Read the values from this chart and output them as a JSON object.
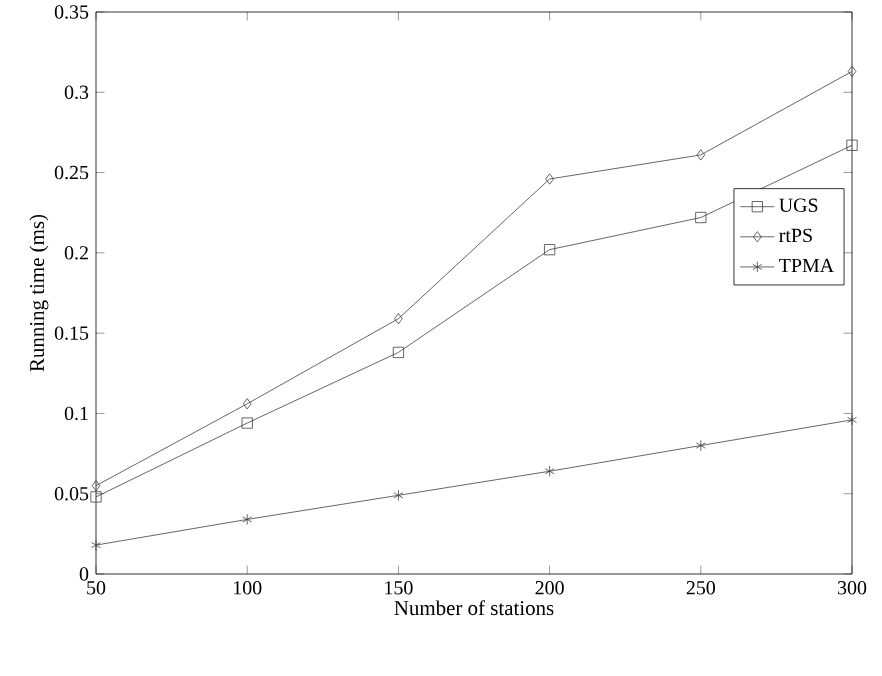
{
  "chart_data": {
    "type": "line",
    "xlabel": "Number of stations",
    "ylabel": "Running time (ms)",
    "x": [
      50,
      100,
      150,
      200,
      250,
      300
    ],
    "series": [
      {
        "name": "UGS",
        "color": "#404040",
        "marker": "square",
        "values": [
          0.048,
          0.094,
          0.138,
          0.202,
          0.222,
          0.267
        ]
      },
      {
        "name": "rtPS",
        "color": "#404040",
        "marker": "diamond",
        "values": [
          0.055,
          0.106,
          0.159,
          0.246,
          0.261,
          0.313
        ]
      },
      {
        "name": "TPMA",
        "color": "#404040",
        "marker": "cross",
        "values": [
          0.018,
          0.034,
          0.049,
          0.064,
          0.08,
          0.096
        ]
      }
    ],
    "xlim": [
      50,
      300
    ],
    "xticks": [
      50,
      100,
      150,
      200,
      250,
      300
    ],
    "ylim": [
      0,
      0.35
    ],
    "yticks": [
      0,
      0.05,
      0.1,
      0.15,
      0.2,
      0.25,
      0.3,
      0.35
    ],
    "grid": false,
    "legend": "right",
    "line_style": "solid"
  }
}
